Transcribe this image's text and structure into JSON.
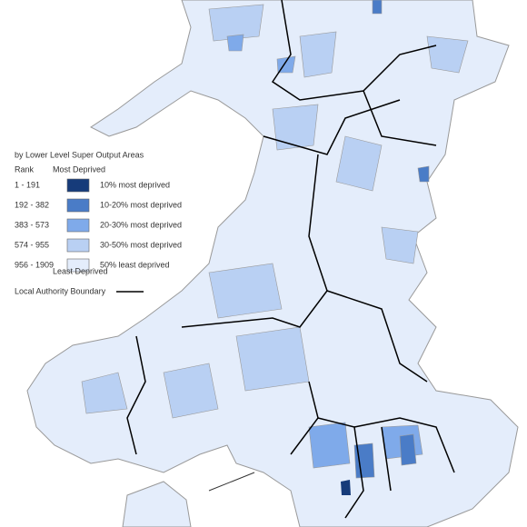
{
  "legend": {
    "title": "by Lower Level Super Output Areas",
    "rank_header": "Rank",
    "top_label": "Most Deprived",
    "bottom_label": "Least Deprived",
    "items": [
      {
        "rank": "1 - 191",
        "label": "10% most deprived",
        "color": "#163b7a"
      },
      {
        "rank": "192 - 382",
        "label": "10-20% most deprived",
        "color": "#4a7cc7"
      },
      {
        "rank": "383 - 573",
        "label": "20-30% most deprived",
        "color": "#7faaea"
      },
      {
        "rank": "574 - 955",
        "label": "30-50% most deprived",
        "color": "#b9d0f3"
      },
      {
        "rank": "956 - 1909",
        "label": "50% least deprived",
        "color": "#e4edfb"
      }
    ],
    "boundary_label": "Local Authority Boundary"
  }
}
